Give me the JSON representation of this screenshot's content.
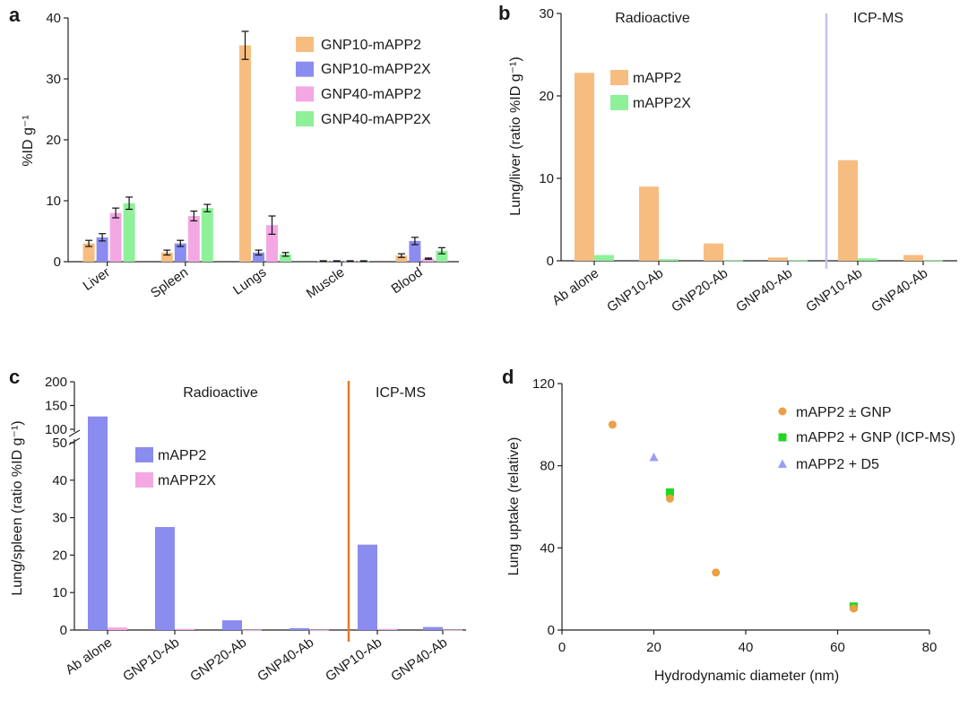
{
  "colors": {
    "orange": "#f7bd80",
    "blue": "#8a8cf0",
    "pink": "#f3a8e3",
    "green": "#8ff09a",
    "scatter_orange": "#ec9f43",
    "scatter_green": "#22d622",
    "scatter_blue": "#9a9ff2",
    "divider_b": "#c4c4ee",
    "divider_c": "#e07a2d"
  },
  "chart_data": [
    {
      "panel_label": "a",
      "type": "bar",
      "ylabel": "%ID g⁻¹",
      "ylim": [
        0,
        40
      ],
      "yticks": [
        0,
        10,
        20,
        30,
        40
      ],
      "categories": [
        "Liver",
        "Spleen",
        "Lungs",
        "Muscle",
        "Blood"
      ],
      "legend_position": "top-right",
      "series": [
        {
          "name": "GNP10-mAPP2",
          "color_key": "orange",
          "values": [
            3.0,
            1.5,
            35.5,
            0.1,
            1.0
          ],
          "errors": [
            0.5,
            0.4,
            2.3,
            0.05,
            0.3
          ]
        },
        {
          "name": "GNP10-mAPP2X",
          "color_key": "blue",
          "values": [
            4.0,
            3.0,
            1.5,
            0.1,
            3.4
          ],
          "errors": [
            0.6,
            0.5,
            0.4,
            0.05,
            0.6
          ]
        },
        {
          "name": "GNP40-mAPP2",
          "color_key": "pink",
          "values": [
            8.0,
            7.5,
            6.0,
            0.1,
            0.5
          ],
          "errors": [
            0.8,
            0.8,
            1.5,
            0.05,
            0.1
          ]
        },
        {
          "name": "GNP40-mAPP2X",
          "color_key": "green",
          "values": [
            9.6,
            8.8,
            1.2,
            0.1,
            1.8
          ],
          "errors": [
            1.0,
            0.6,
            0.3,
            0.05,
            0.5
          ]
        }
      ]
    },
    {
      "panel_label": "b",
      "type": "bar",
      "ylabel": "Lung/liver (ratio %ID g⁻¹)",
      "ylim": [
        0,
        30
      ],
      "yticks": [
        0,
        10,
        20,
        30
      ],
      "categories": [
        "Ab alone",
        "GNP10-Ab",
        "GNP20-Ab",
        "GNP40-Ab",
        "GNP10-Ab",
        "GNP40-Ab"
      ],
      "section_labels": [
        "Radioactive",
        "ICP-MS"
      ],
      "legend_position": "top-left",
      "series": [
        {
          "name": "mAPP2",
          "color_key": "orange",
          "values": [
            22.8,
            9.0,
            2.1,
            0.4,
            12.2,
            0.7
          ]
        },
        {
          "name": "mAPP2X",
          "color_key": "green",
          "values": [
            0.7,
            0.2,
            0.05,
            0.05,
            0.3,
            0.05
          ]
        }
      ]
    },
    {
      "panel_label": "c",
      "type": "bar",
      "ylabel": "Lung/spleen (ratio %ID g⁻¹)",
      "ylim_lower": [
        0,
        50
      ],
      "yticks_lower": [
        0,
        10,
        20,
        30,
        40,
        50
      ],
      "ylim_upper": [
        100,
        200
      ],
      "yticks_upper": [
        100,
        150,
        200
      ],
      "broken_axis": true,
      "categories": [
        "Ab alone",
        "GNP10-Ab",
        "GNP20-Ab",
        "GNP40-Ab",
        "GNP10-Ab",
        "GNP40-Ab"
      ],
      "section_labels": [
        "Radioactive",
        "ICP-MS"
      ],
      "legend_position": "middle-left",
      "series": [
        {
          "name": "mAPP2",
          "color_key": "blue",
          "values": [
            127,
            27.5,
            2.6,
            0.5,
            22.8,
            0.8
          ]
        },
        {
          "name": "mAPP2X",
          "color_key": "pink",
          "values": [
            0.7,
            0.3,
            0.05,
            0.05,
            0.3,
            0.05
          ]
        }
      ]
    },
    {
      "panel_label": "d",
      "type": "scatter",
      "xlabel": "Hydrodynamic diameter (nm)",
      "ylabel": "Lung uptake (relative)",
      "xlim": [
        0,
        80
      ],
      "ylim": [
        0,
        120
      ],
      "xticks": [
        0,
        20,
        40,
        60,
        80
      ],
      "yticks": [
        0,
        40,
        80,
        120
      ],
      "legend_position": "top-right",
      "series": [
        {
          "name": "mAPP2 ± GNP",
          "marker": "circle",
          "color_key": "scatter_orange",
          "x": [
            11,
            23.5,
            33.5,
            63.5
          ],
          "y": [
            100,
            64,
            28,
            10.5
          ]
        },
        {
          "name": "mAPP2 + GNP (ICP-MS)",
          "marker": "square",
          "color_key": "scatter_green",
          "x": [
            23.5,
            63.5
          ],
          "y": [
            67,
            11.5
          ]
        },
        {
          "name": "mAPP2 + D5",
          "marker": "triangle",
          "color_key": "scatter_blue",
          "x": [
            20
          ],
          "y": [
            84
          ]
        }
      ]
    }
  ]
}
